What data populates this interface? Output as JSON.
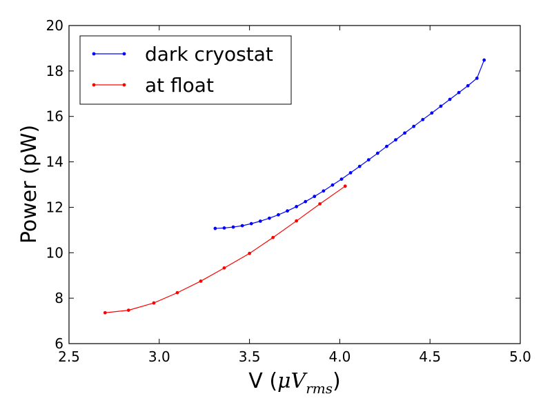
{
  "chart_data": {
    "type": "line",
    "xlabel": "V (μV_rms)",
    "ylabel": "Power (pW)",
    "xlim": [
      2.5,
      5.0
    ],
    "ylim": [
      6,
      20
    ],
    "x_ticks": [
      "2.5",
      "3.0",
      "3.5",
      "4.0",
      "4.5",
      "5.0"
    ],
    "y_ticks": [
      "6",
      "8",
      "10",
      "12",
      "14",
      "16",
      "18",
      "20"
    ],
    "legend_position": "top-left",
    "grid": false,
    "series": [
      {
        "name": "dark cryostat",
        "color": "#0000ff",
        "x": [
          3.31,
          3.36,
          3.41,
          3.46,
          3.51,
          3.56,
          3.61,
          3.66,
          3.71,
          3.76,
          3.81,
          3.86,
          3.91,
          3.96,
          4.01,
          4.06,
          4.11,
          4.16,
          4.21,
          4.26,
          4.31,
          4.36,
          4.41,
          4.46,
          4.51,
          4.56,
          4.61,
          4.66,
          4.71,
          4.76,
          4.8
        ],
        "y": [
          11.07,
          11.09,
          11.13,
          11.19,
          11.28,
          11.39,
          11.52,
          11.67,
          11.84,
          12.03,
          12.25,
          12.48,
          12.72,
          12.98,
          13.24,
          13.52,
          13.8,
          14.09,
          14.38,
          14.68,
          14.97,
          15.27,
          15.56,
          15.86,
          16.15,
          16.45,
          16.75,
          17.05,
          17.35,
          17.68,
          18.48
        ]
      },
      {
        "name": "at float",
        "color": "#ff0000",
        "x": [
          2.7,
          2.83,
          2.97,
          3.1,
          3.23,
          3.36,
          3.5,
          3.63,
          3.76,
          3.89,
          4.03
        ],
        "y": [
          7.36,
          7.47,
          7.79,
          8.24,
          8.75,
          9.33,
          9.97,
          10.67,
          11.4,
          12.15,
          12.93
        ]
      }
    ]
  }
}
